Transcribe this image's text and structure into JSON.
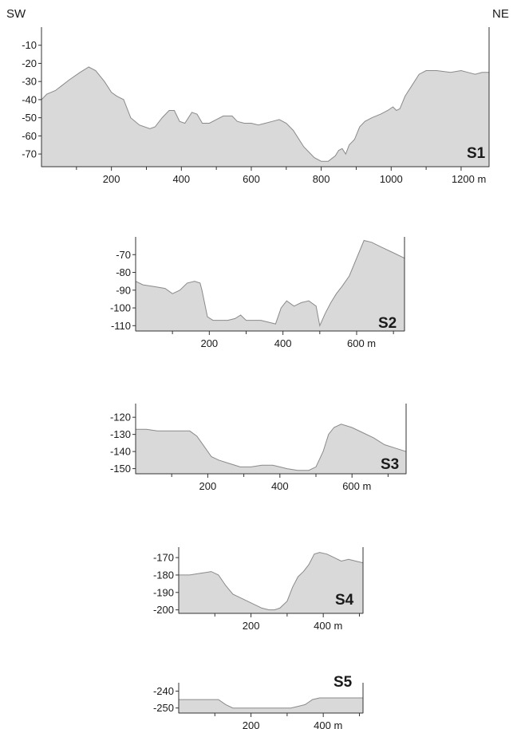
{
  "orientation": {
    "left": "SW",
    "right": "NE"
  },
  "colors": {
    "fill": "#d9d9d9",
    "outline": "#8a8a8a",
    "axis": "#333333"
  },
  "chart_data": [
    {
      "type": "area",
      "label": "S1",
      "xlim": [
        0,
        1280
      ],
      "ylim": [
        -77,
        0
      ],
      "x_ticks": [
        200,
        400,
        600,
        800,
        1000,
        1200
      ],
      "x_minor_ticks": [
        100,
        300,
        500,
        700,
        900,
        1100
      ],
      "x_tick_labels": [
        "200",
        "400",
        "600",
        "800",
        "1000",
        "1200 m"
      ],
      "y_ticks": [
        -10,
        -20,
        -30,
        -40,
        -50,
        -60,
        -70
      ],
      "y_tick_labels": [
        "-10",
        "-20",
        "-30",
        "-40",
        "-50",
        "-60",
        "-70"
      ],
      "x": [
        0,
        15,
        40,
        60,
        80,
        110,
        135,
        155,
        180,
        200,
        215,
        235,
        255,
        280,
        310,
        325,
        345,
        365,
        380,
        395,
        410,
        430,
        445,
        460,
        480,
        500,
        520,
        545,
        560,
        580,
        600,
        620,
        640,
        660,
        680,
        700,
        720,
        750,
        780,
        800,
        820,
        840,
        850,
        860,
        870,
        880,
        895,
        910,
        925,
        945,
        970,
        990,
        1005,
        1015,
        1025,
        1040,
        1060,
        1080,
        1100,
        1130,
        1170,
        1200,
        1220,
        1240,
        1260,
        1280
      ],
      "y": [
        -40,
        -37,
        -35,
        -32,
        -29,
        -25,
        -22,
        -24,
        -30,
        -36,
        -38,
        -40,
        -50,
        -54,
        -56,
        -55,
        -50,
        -46,
        -46,
        -52,
        -53,
        -47,
        -48,
        -53,
        -53,
        -51,
        -49,
        -49,
        -52,
        -53,
        -53,
        -54,
        -53,
        -52,
        -51,
        -53,
        -57,
        -66,
        -72,
        -74,
        -74,
        -71,
        -68,
        -67,
        -70,
        -65,
        -62,
        -55,
        -52,
        -50,
        -48,
        -46,
        -44,
        -46,
        -45,
        -38,
        -32,
        -26,
        -24,
        -24,
        -25,
        -24,
        -25,
        -26,
        -25,
        -25
      ]
    },
    {
      "type": "area",
      "label": "S2",
      "xlim": [
        0,
        730
      ],
      "ylim": [
        -113,
        -60
      ],
      "x_ticks": [
        200,
        400,
        600
      ],
      "x_minor_ticks": [
        100,
        300,
        500,
        700
      ],
      "x_tick_labels": [
        "200",
        "400",
        "600 m"
      ],
      "y_ticks": [
        -70,
        -80,
        -90,
        -100,
        -110
      ],
      "y_tick_labels": [
        "-70",
        "-80",
        "-90",
        "-100",
        "-110"
      ],
      "x": [
        0,
        20,
        50,
        80,
        100,
        120,
        140,
        160,
        175,
        180,
        195,
        210,
        230,
        250,
        270,
        285,
        300,
        320,
        340,
        360,
        380,
        395,
        410,
        430,
        450,
        470,
        490,
        500,
        515,
        530,
        545,
        560,
        580,
        600,
        620,
        640,
        670,
        700,
        730
      ],
      "y": [
        -85,
        -87,
        -88,
        -89,
        -92,
        -90,
        -86,
        -85,
        -86,
        -90,
        -105,
        -107,
        -107,
        -107,
        -106,
        -104,
        -107,
        -107,
        -107,
        -108,
        -109,
        -100,
        -96,
        -99,
        -97,
        -96,
        -99,
        -110,
        -103,
        -97,
        -92,
        -88,
        -82,
        -72,
        -62,
        -63,
        -66,
        -69,
        -72
      ]
    },
    {
      "type": "area",
      "label": "S3",
      "xlim": [
        0,
        750
      ],
      "ylim": [
        -153,
        -112
      ],
      "x_ticks": [
        200,
        400,
        600
      ],
      "x_minor_ticks": [
        100,
        300,
        500,
        700
      ],
      "x_tick_labels": [
        "200",
        "400",
        "600 m"
      ],
      "y_ticks": [
        -120,
        -130,
        -140,
        -150
      ],
      "y_tick_labels": [
        "-120",
        "-130",
        "-140",
        "-150"
      ],
      "x": [
        0,
        30,
        60,
        90,
        120,
        150,
        170,
        190,
        210,
        230,
        260,
        290,
        320,
        350,
        380,
        400,
        420,
        450,
        480,
        500,
        520,
        535,
        550,
        570,
        600,
        630,
        660,
        690,
        720,
        750
      ],
      "y": [
        -127,
        -127,
        -128,
        -128,
        -128,
        -128,
        -131,
        -137,
        -143,
        -145,
        -147,
        -149,
        -149,
        -148,
        -148,
        -149,
        -150,
        -151,
        -151,
        -149,
        -140,
        -130,
        -126,
        -124,
        -126,
        -129,
        -132,
        -136,
        -138,
        -140
      ]
    },
    {
      "type": "area",
      "label": "S4",
      "xlim": [
        0,
        510
      ],
      "ylim": [
        -202,
        -164
      ],
      "x_ticks": [
        200,
        400
      ],
      "x_minor_ticks": [
        100,
        300,
        500
      ],
      "x_tick_labels": [
        "200",
        "400 m"
      ],
      "y_ticks": [
        -170,
        -180,
        -190,
        -200
      ],
      "y_tick_labels": [
        "-170",
        "-180",
        "-190",
        "-200"
      ],
      "x": [
        0,
        30,
        60,
        90,
        110,
        130,
        150,
        170,
        190,
        210,
        230,
        250,
        265,
        280,
        300,
        315,
        330,
        345,
        360,
        375,
        390,
        410,
        430,
        450,
        470,
        490,
        510
      ],
      "y": [
        -180,
        -180,
        -179,
        -178,
        -180,
        -186,
        -191,
        -193,
        -195,
        -197,
        -199,
        -200,
        -200,
        -199,
        -195,
        -187,
        -181,
        -178,
        -174,
        -168,
        -167,
        -168,
        -170,
        -172,
        -171,
        -172,
        -173
      ]
    },
    {
      "type": "area",
      "label": "S5",
      "xlim": [
        0,
        510
      ],
      "ylim": [
        -253,
        -235
      ],
      "x_ticks": [
        200,
        400
      ],
      "x_minor_ticks": [
        100,
        300,
        500
      ],
      "x_tick_labels": [
        "200",
        "400 m"
      ],
      "y_ticks": [
        -240,
        -250
      ],
      "y_tick_labels": [
        "-240",
        "-250"
      ],
      "x": [
        0,
        30,
        60,
        90,
        110,
        130,
        150,
        170,
        200,
        230,
        260,
        290,
        310,
        330,
        350,
        370,
        390,
        410,
        430,
        460,
        480,
        510
      ],
      "y": [
        -245,
        -245,
        -245,
        -245,
        -245,
        -248,
        -250,
        -250,
        -250,
        -250,
        -250,
        -250,
        -250,
        -249,
        -248,
        -245,
        -244,
        -244,
        -244,
        -244,
        -244,
        -244
      ]
    }
  ]
}
